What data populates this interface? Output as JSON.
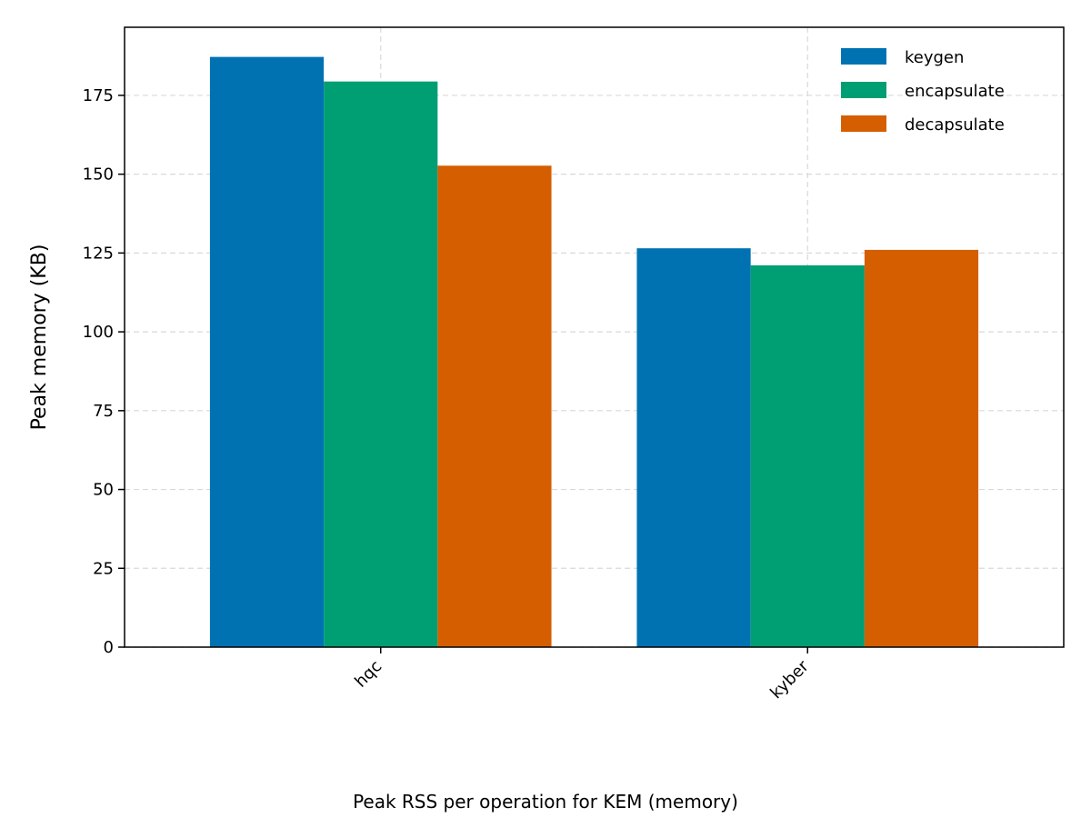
{
  "chart_data": {
    "type": "bar",
    "categories": [
      "hqc",
      "kyber"
    ],
    "series": [
      {
        "name": "keygen",
        "color": "#0072B2",
        "values": [
          187.2,
          126.5
        ]
      },
      {
        "name": "encapsulate",
        "color": "#009E73",
        "values": [
          179.4,
          121.1
        ]
      },
      {
        "name": "decapsulate",
        "color": "#D55E00",
        "values": [
          152.7,
          126.0
        ]
      }
    ],
    "title": "",
    "caption": "Peak RSS per operation for KEM (memory)",
    "xlabel": "",
    "ylabel": "Peak memory (KB)",
    "ylim": [
      0,
      196.6
    ],
    "yticks": [
      0,
      25,
      50,
      75,
      100,
      125,
      150,
      175
    ],
    "grid": true,
    "legend_position": "top-right"
  }
}
